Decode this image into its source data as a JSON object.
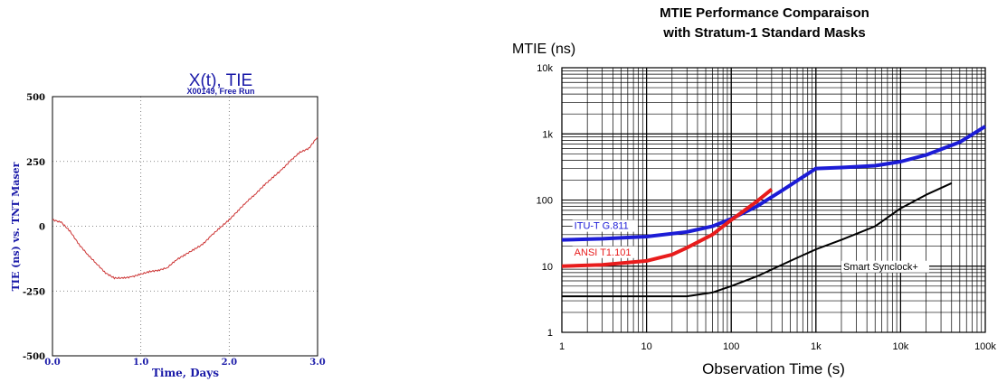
{
  "chart_data": [
    {
      "type": "line",
      "title": "X(t), TIE",
      "subtitle": "X00149, Free Run",
      "xlabel": "Time, Days",
      "ylabel": "TIE (ns) vs. TNT Maser",
      "xlim": [
        0.0,
        3.0
      ],
      "ylim": [
        -500,
        500
      ],
      "x_ticks": [
        "0.0",
        "1.0",
        "2.0",
        "3.0"
      ],
      "y_ticks": [
        "-500",
        "-250",
        "0",
        "250",
        "500"
      ],
      "grid": true,
      "colors": {
        "title": "#1a1aa8",
        "axis_labels": "#1a1aa8",
        "series": "#cc3333"
      },
      "series": [
        {
          "x": [
            0.0,
            0.1,
            0.2,
            0.3,
            0.4,
            0.5,
            0.6,
            0.7,
            0.8,
            0.9,
            1.0,
            1.1,
            1.2,
            1.3,
            1.4,
            1.5,
            1.6,
            1.7,
            1.8,
            1.9,
            2.0,
            2.1,
            2.2,
            2.3,
            2.4,
            2.5,
            2.6,
            2.7,
            2.8,
            2.9,
            3.0
          ],
          "values": [
            25,
            15,
            -20,
            -70,
            -110,
            -145,
            -180,
            -200,
            -200,
            -195,
            -185,
            -175,
            -170,
            -160,
            -130,
            -110,
            -90,
            -70,
            -35,
            -5,
            25,
            60,
            95,
            125,
            160,
            190,
            220,
            255,
            285,
            300,
            345
          ]
        }
      ]
    },
    {
      "type": "line",
      "title_lines": [
        "MTIE Performance Comparaison",
        "with Stratum-1 Standard Masks"
      ],
      "ylabel": "MTIE (ns)",
      "xlabel": "Observation Time (s)",
      "x_scale": "log",
      "y_scale": "log",
      "xlim": [
        1,
        100000
      ],
      "ylim": [
        1,
        10000
      ],
      "x_ticks": [
        "1",
        "10",
        "100",
        "1k",
        "10k",
        "100k"
      ],
      "y_ticks": [
        "1",
        "10",
        "100",
        "1k",
        "10k"
      ],
      "grid": true,
      "series": [
        {
          "name": "ITU-T G.811",
          "color": "#1c1cd6",
          "x": [
            1,
            3,
            10,
            30,
            60,
            100,
            200,
            400,
            1000,
            2000,
            5000,
            10000,
            20000,
            50000,
            100000
          ],
          "values": [
            25,
            26,
            28,
            33,
            40,
            52,
            80,
            140,
            300,
            310,
            330,
            380,
            480,
            750,
            1300
          ]
        },
        {
          "name": "ANSI T1.101",
          "color": "#e81c1c",
          "x": [
            1,
            3,
            10,
            20,
            30,
            60,
            100,
            200,
            300
          ],
          "values": [
            10,
            10.5,
            12,
            15,
            19,
            30,
            50,
            95,
            145
          ]
        },
        {
          "name": "Smart Synclock+",
          "color": "#000000",
          "x": [
            1,
            10,
            30,
            60,
            100,
            200,
            500,
            1000,
            2000,
            5000,
            10000,
            20000,
            40000
          ],
          "values": [
            3.5,
            3.5,
            3.5,
            4,
            5,
            7,
            12,
            18,
            25,
            40,
            75,
            120,
            180
          ]
        }
      ]
    }
  ]
}
